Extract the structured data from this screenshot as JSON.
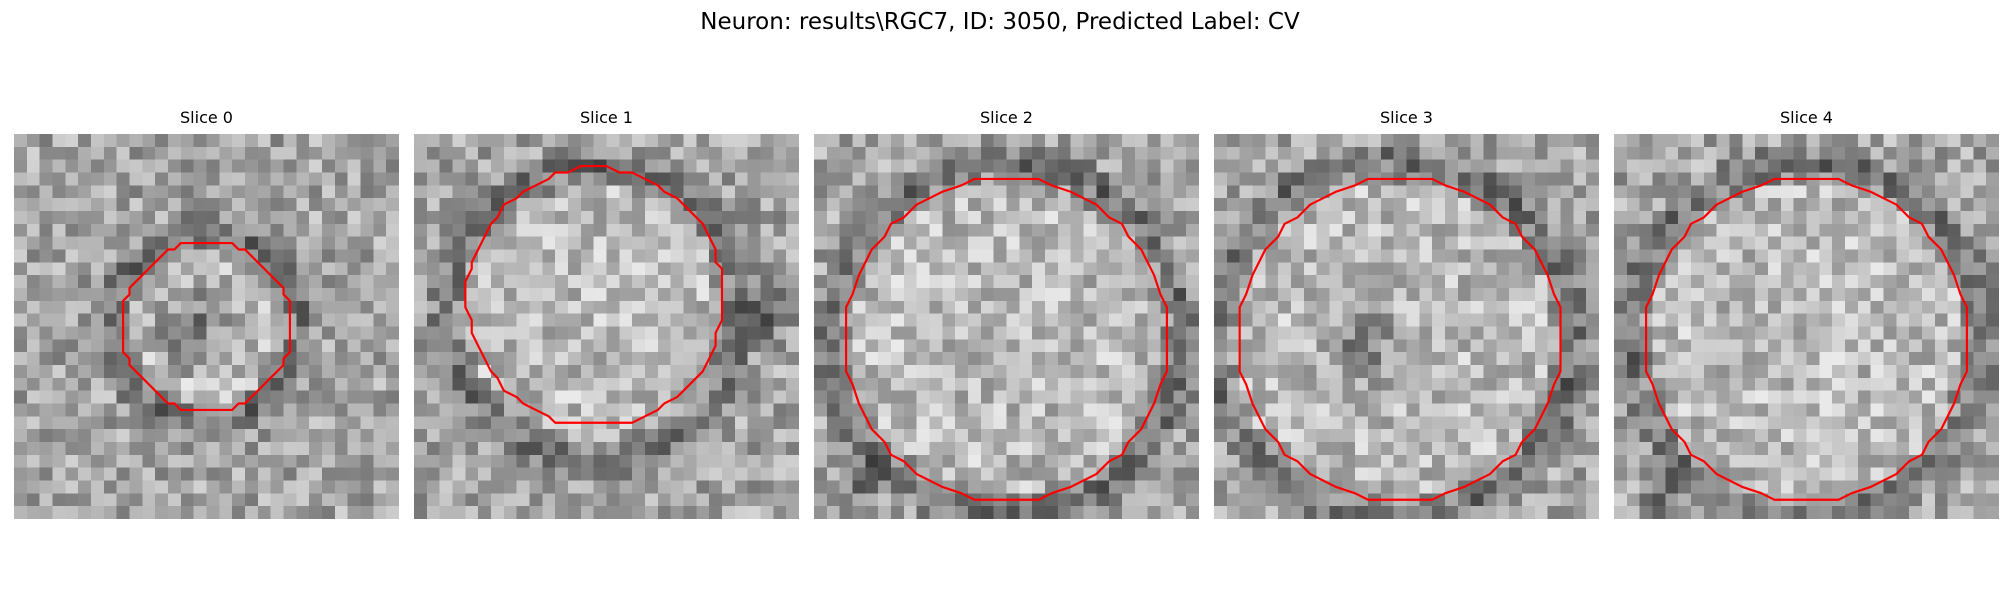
{
  "figure": {
    "title": "Neuron: results\\RGC7, ID: 3050, Predicted Label: CV"
  },
  "contour_color": "#ff0000",
  "grid_size": 30,
  "panels": [
    {
      "title": "Slice 0",
      "center": [
        15,
        15
      ],
      "radius": 6.4,
      "dark_ring_radius": 7.3,
      "dark_blob_center": [
        14,
        15
      ],
      "dark_blob_radius": 4.5,
      "contour_center": [
        15.0,
        15.0
      ],
      "contour_radius": 6.6,
      "seed": 3
    },
    {
      "title": "Slice 1",
      "center": [
        14,
        14
      ],
      "radius": 9.8,
      "dark_ring_radius": 11.5,
      "dark_blob_center": [
        27,
        14
      ],
      "dark_blob_radius": 3.5,
      "contour_center": [
        14.1,
        12.7
      ],
      "contour_radius": 10.0,
      "seed": 7
    },
    {
      "title": "Slice 2",
      "center": [
        15,
        16
      ],
      "radius": 12.0,
      "dark_ring_radius": 13.8,
      "dark_blob_center": [
        4,
        27
      ],
      "dark_blob_radius": 2.5,
      "contour_center": [
        15.0,
        16.0
      ],
      "contour_radius": 12.6,
      "seed": 11
    },
    {
      "title": "Slice 3",
      "center": [
        14,
        16
      ],
      "radius": 12.4,
      "dark_ring_radius": 14.0,
      "dark_blob_center": [
        11.5,
        16.5
      ],
      "dark_blob_radius": 4.0,
      "contour_center": [
        14.5,
        16.0
      ],
      "contour_radius": 12.6,
      "seed": 17
    },
    {
      "title": "Slice 4",
      "center": [
        15,
        16
      ],
      "radius": 12.2,
      "dark_ring_radius": 13.8,
      "dark_blob_center": [
        4,
        28
      ],
      "dark_blob_radius": 2.5,
      "contour_center": [
        15.0,
        16.0
      ],
      "contour_radius": 12.6,
      "seed": 23
    }
  ]
}
